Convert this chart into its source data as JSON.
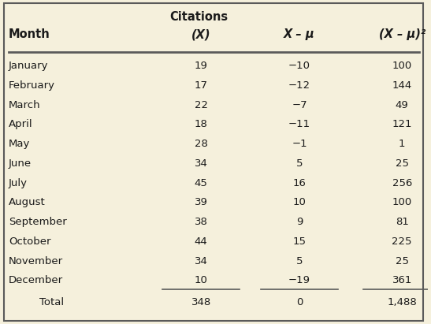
{
  "bg_color": "#f5f0dc",
  "border_color": "#5a5a5a",
  "header1_line1": "Citations",
  "header1_line2": "(X)",
  "header2": "X – μ",
  "header3": "(X – μ)²",
  "col0_header": "Month",
  "months": [
    "January",
    "February",
    "March",
    "April",
    "May",
    "June",
    "July",
    "August",
    "September",
    "October",
    "November",
    "December"
  ],
  "citations": [
    "19",
    "17",
    "22",
    "18",
    "28",
    "34",
    "45",
    "39",
    "38",
    "44",
    "34",
    "10"
  ],
  "deviations": [
    "−10",
    "−12",
    "−7",
    "−11",
    "−1",
    "5",
    "16",
    "10",
    "9",
    "15",
    "5",
    "−19"
  ],
  "sq_deviations": [
    "100",
    "144",
    "49",
    "121",
    "1",
    "25",
    "256",
    "100",
    "81",
    "225",
    "25",
    "361"
  ],
  "total_label": "Total",
  "total_x": "348",
  "total_dev": "0",
  "total_sq": "1,488",
  "text_color": "#1a1a1a",
  "font_size": 9.5,
  "header_font_size": 10.5
}
